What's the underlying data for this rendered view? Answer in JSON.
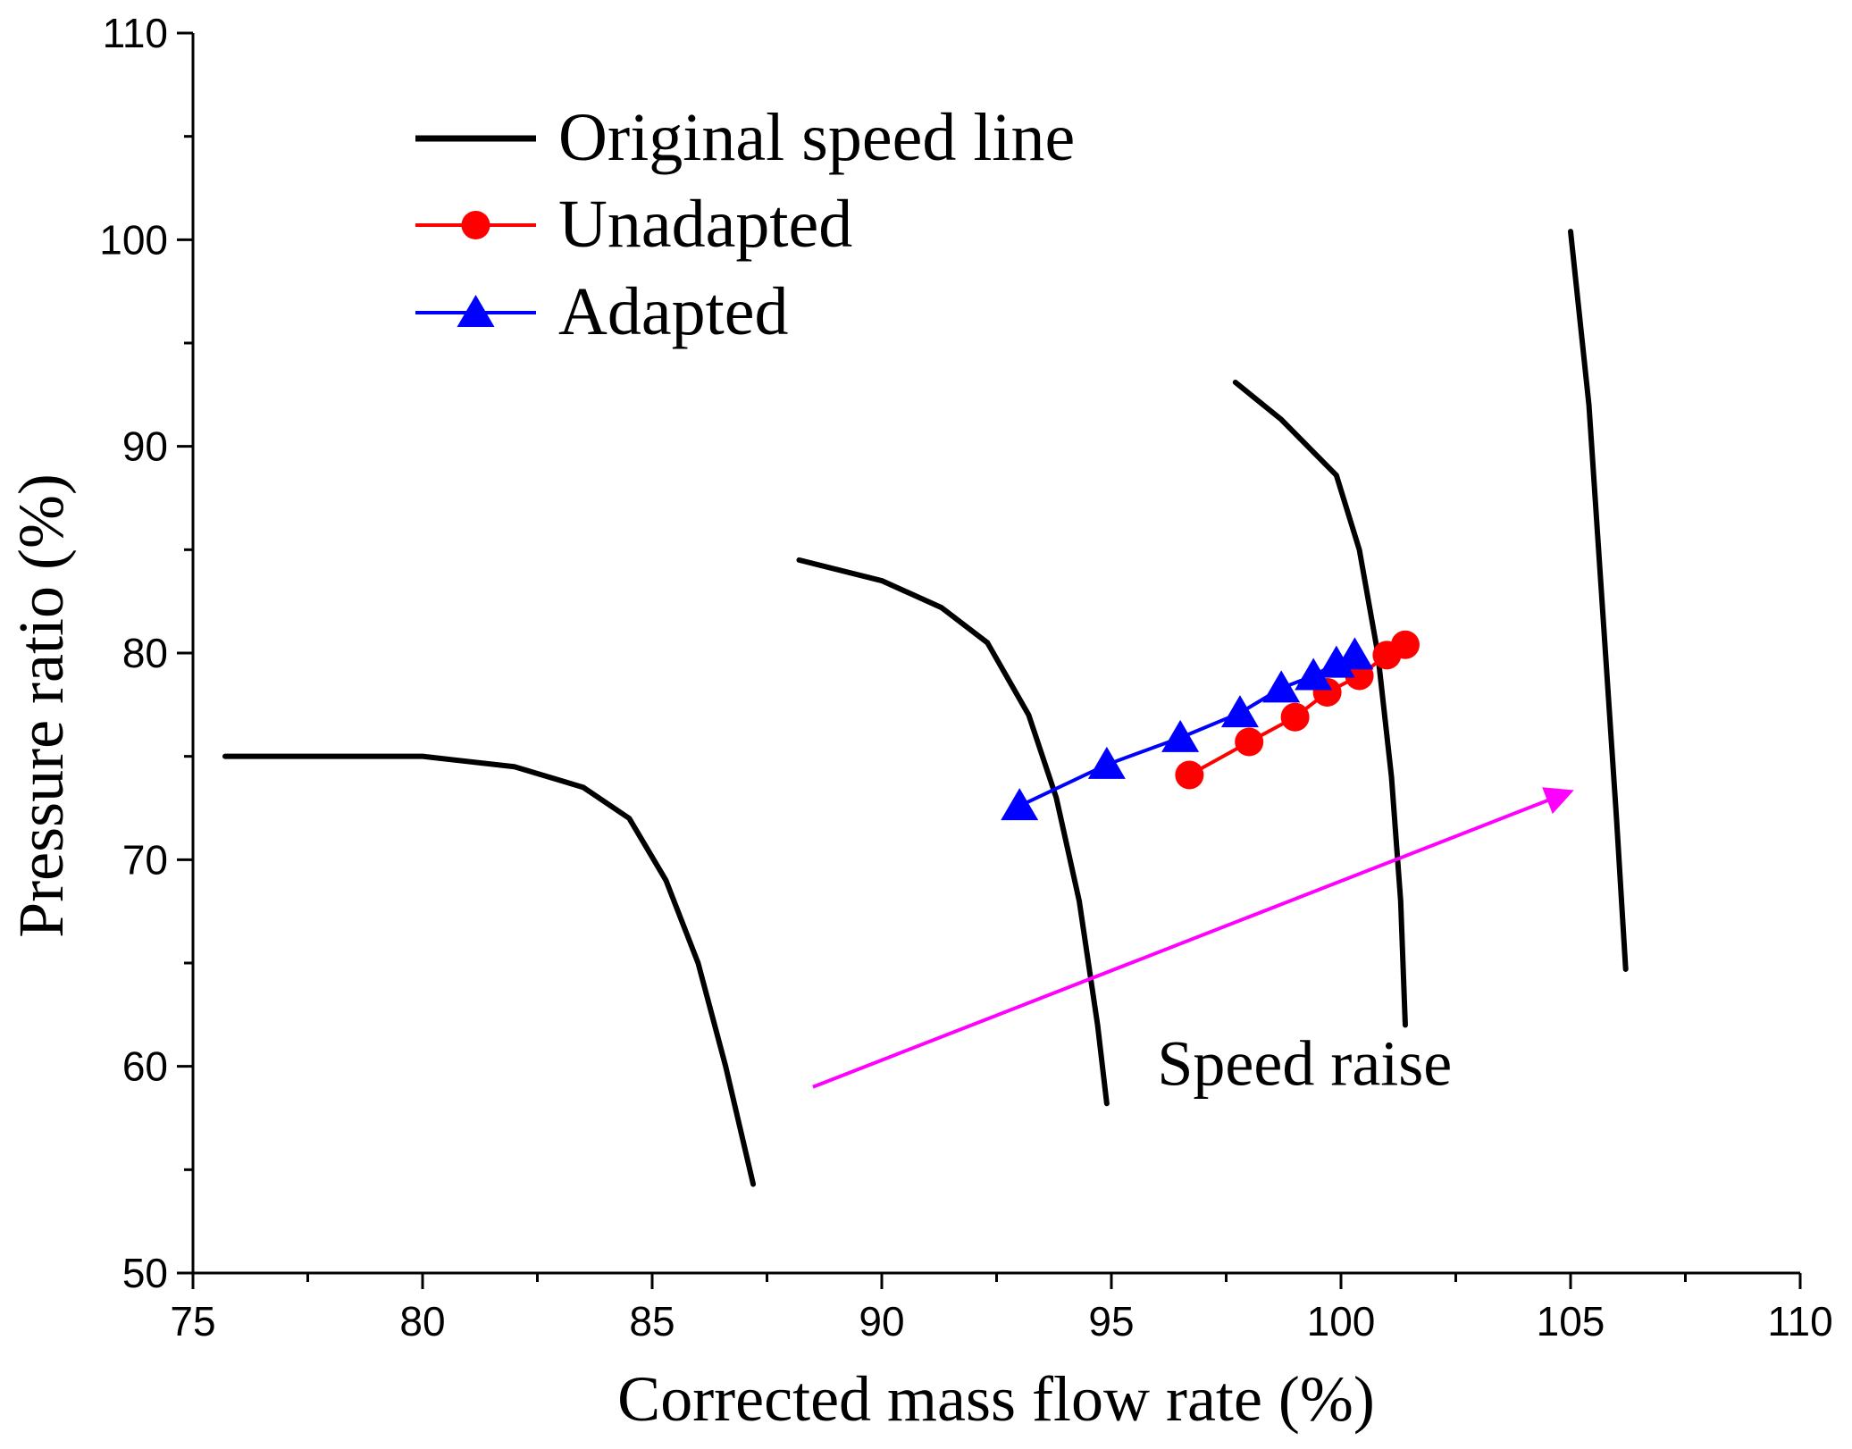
{
  "chart_data": {
    "type": "line",
    "xlabel": "Corrected mass flow rate (%)",
    "ylabel": "Pressure ratio (%)",
    "xlim": [
      75,
      110
    ],
    "ylim": [
      50,
      110
    ],
    "xticks": [
      "75",
      "80",
      "85",
      "90",
      "95",
      "100",
      "105",
      "110"
    ],
    "yticks": [
      "50",
      "60",
      "70",
      "80",
      "90",
      "100",
      "110"
    ],
    "legend_position": "top-left",
    "legend": [
      {
        "label": "Original speed line",
        "color": "#000000",
        "marker": "none"
      },
      {
        "label": "Unadapted",
        "color": "#ff0000",
        "marker": "circle"
      },
      {
        "label": "Adapted",
        "color": "#0000ff",
        "marker": "triangle"
      }
    ],
    "speed_lines": [
      {
        "points": [
          [
            75.7,
            75.0
          ],
          [
            80.0,
            75.0
          ],
          [
            82.0,
            74.5
          ],
          [
            83.5,
            73.5
          ],
          [
            84.5,
            72.0
          ],
          [
            85.3,
            69.0
          ],
          [
            86.0,
            65.0
          ],
          [
            86.6,
            60.0
          ],
          [
            87.2,
            54.3
          ]
        ]
      },
      {
        "points": [
          [
            88.2,
            84.5
          ],
          [
            90.0,
            83.5
          ],
          [
            91.3,
            82.2
          ],
          [
            92.3,
            80.5
          ],
          [
            93.2,
            77.0
          ],
          [
            93.8,
            73.0
          ],
          [
            94.3,
            68.0
          ],
          [
            94.7,
            62.0
          ],
          [
            94.9,
            58.2
          ]
        ]
      },
      {
        "points": [
          [
            97.7,
            93.1
          ],
          [
            98.7,
            91.3
          ],
          [
            99.9,
            88.6
          ],
          [
            100.4,
            85.0
          ],
          [
            100.8,
            80.0
          ],
          [
            101.1,
            74.0
          ],
          [
            101.3,
            68.0
          ],
          [
            101.4,
            62.0
          ]
        ]
      },
      {
        "points": [
          [
            105.0,
            100.4
          ],
          [
            105.4,
            92.0
          ],
          [
            105.7,
            82.0
          ],
          [
            106.0,
            72.0
          ],
          [
            106.2,
            64.7
          ]
        ]
      }
    ],
    "series": [
      {
        "name": "Unadapted",
        "color": "#ff0000",
        "marker": "circle",
        "x": [
          96.7,
          98.0,
          99.0,
          99.7,
          100.4,
          101.0,
          101.4
        ],
        "y": [
          74.1,
          75.7,
          76.9,
          78.1,
          78.9,
          79.9,
          80.4
        ]
      },
      {
        "name": "Adapted",
        "color": "#0000ff",
        "marker": "triangle",
        "x": [
          93.0,
          94.9,
          96.5,
          97.8,
          98.7,
          99.4,
          99.9,
          100.3
        ],
        "y": [
          72.6,
          74.6,
          75.9,
          77.1,
          78.3,
          78.9,
          79.5,
          79.9
        ]
      }
    ],
    "annotation": {
      "text": "Speed raise",
      "text_at": [
        96.0,
        59.1
      ],
      "arrow_from": [
        88.5,
        59.0
      ],
      "arrow_to": [
        105.0,
        73.3
      ],
      "arrow_color": "#ff00ff"
    }
  }
}
